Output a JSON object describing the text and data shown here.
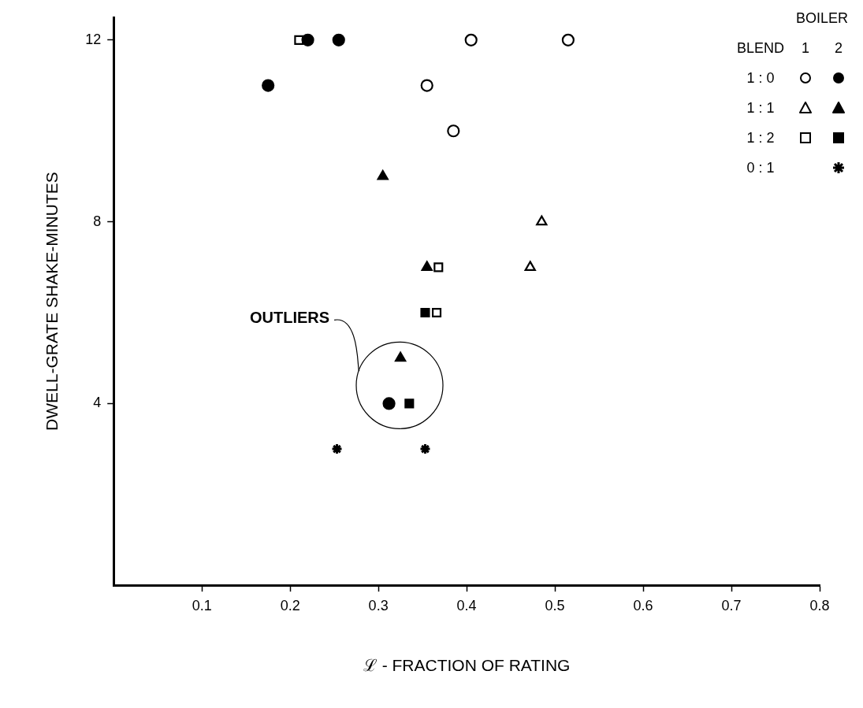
{
  "chart_data": {
    "type": "scatter",
    "xlabel": "ℒ - FRACTION OF RATING",
    "ylabel": "DWELL-GRATE SHAKE-MINUTES",
    "legend_title": "BOILER",
    "legend": "top right",
    "grid": false,
    "xlim": [
      0,
      0.8
    ],
    "xticks": [
      0.1,
      0.2,
      0.3,
      0.4,
      0.5,
      0.6,
      0.7,
      0.8
    ],
    "ylim": [
      0,
      12.5
    ],
    "yticks": [
      4,
      8,
      12
    ],
    "annotations": [
      "BLEND",
      "1",
      "2",
      "OUTLIERS"
    ],
    "series": [
      {
        "name": "1 : 0",
        "color": "#000000",
        "marker": "circle",
        "x": [
          0.405,
          0.515,
          0.355,
          0.385
        ],
        "values": [
          12,
          12,
          11,
          10
        ]
      },
      {
        "color": "#000000",
        "marker": "circle",
        "x": [
          0.22,
          0.255,
          0.175,
          0.312
        ],
        "values": [
          12,
          12,
          11,
          4
        ]
      },
      {
        "name": "1 : 1",
        "color": "#000000",
        "marker": "triangle",
        "x": [
          0.485,
          0.472
        ],
        "values": [
          8,
          7
        ]
      },
      {
        "color": "#000000",
        "marker": "triangle",
        "x": [
          0.305,
          0.355,
          0.325
        ],
        "values": [
          9,
          7,
          5
        ]
      },
      {
        "name": "1 : 2",
        "color": "#000000",
        "marker": "square",
        "x": [
          0.21,
          0.368,
          0.366
        ],
        "values": [
          12,
          7,
          6
        ]
      },
      {
        "color": "#000000",
        "marker": "square",
        "x": [
          0.353,
          0.335
        ],
        "values": [
          6,
          4
        ]
      },
      {
        "name": "0 : 1",
        "color": "#000000",
        "marker": "cross",
        "x": [
          0.253,
          0.353
        ],
        "values": [
          3,
          3
        ]
      }
    ]
  }
}
